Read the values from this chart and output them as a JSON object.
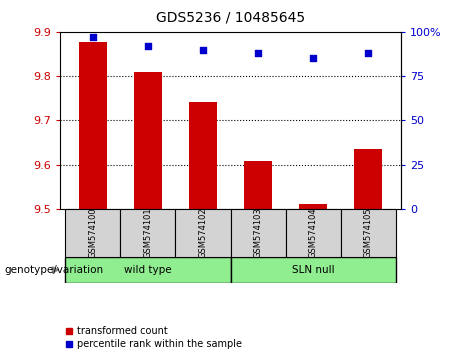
{
  "title": "GDS5236 / 10485645",
  "categories": [
    "GSM574100",
    "GSM574101",
    "GSM574102",
    "GSM574103",
    "GSM574104",
    "GSM574105"
  ],
  "red_values": [
    9.878,
    9.81,
    9.742,
    9.608,
    9.51,
    9.635
  ],
  "blue_values": [
    97,
    92,
    90,
    88,
    85,
    88
  ],
  "ylim_left": [
    9.5,
    9.9
  ],
  "ylim_right": [
    0,
    100
  ],
  "yticks_left": [
    9.5,
    9.6,
    9.7,
    9.8,
    9.9
  ],
  "yticks_right": [
    0,
    25,
    50,
    75,
    100
  ],
  "ytick_labels_right": [
    "0",
    "25",
    "50",
    "75",
    "100%"
  ],
  "bar_color": "#cc0000",
  "dot_color": "#0000cc",
  "bar_width": 0.5,
  "legend_red": "transformed count",
  "legend_blue": "percentile rank within the sample",
  "genotype_label": "genotype/variation",
  "bar_bottom": 9.5,
  "title_fontsize": 10,
  "axis_fontsize": 8,
  "label_fontsize": 7.5
}
